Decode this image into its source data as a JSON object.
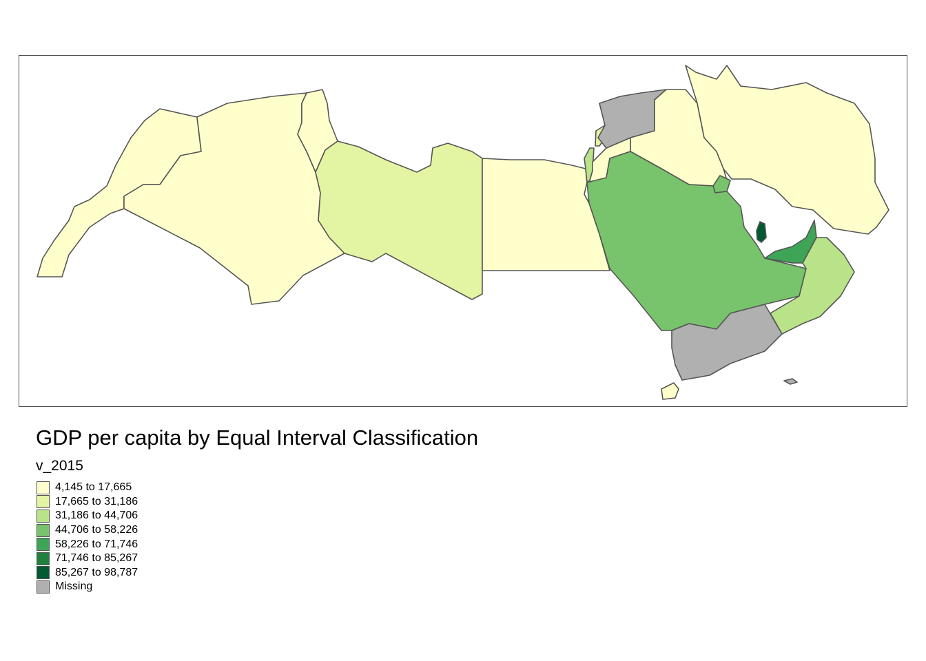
{
  "map": {
    "title": "GDP per capita by Equal Interval Classification",
    "variable": "v_2015",
    "legend": [
      {
        "label": "4,145 to 17,665",
        "color": "#ffffcc"
      },
      {
        "label": "17,665 to 31,186",
        "color": "#e3f4a2"
      },
      {
        "label": "31,186 to 44,706",
        "color": "#b9e389"
      },
      {
        "label": "44,706 to 58,226",
        "color": "#78c46c"
      },
      {
        "label": "58,226 to 71,746",
        "color": "#3ea456"
      },
      {
        "label": "71,746 to 85,267",
        "color": "#208040"
      },
      {
        "label": "85,267 to 98,787",
        "color": "#005a32"
      },
      {
        "label": "Missing",
        "color": "#b0b0b0"
      }
    ],
    "regions": [
      {
        "name": "Morocco",
        "class": 0
      },
      {
        "name": "Algeria",
        "class": 0
      },
      {
        "name": "Tunisia",
        "class": 0
      },
      {
        "name": "Libya",
        "class": 1
      },
      {
        "name": "Egypt",
        "class": 0
      },
      {
        "name": "Israel",
        "class": 2
      },
      {
        "name": "Lebanon",
        "class": 1
      },
      {
        "name": "Jordan",
        "class": 0
      },
      {
        "name": "Syria",
        "class": 7
      },
      {
        "name": "Iraq",
        "class": 0
      },
      {
        "name": "Iran",
        "class": 0
      },
      {
        "name": "Kuwait",
        "class": 3
      },
      {
        "name": "Saudi Arabia",
        "class": 3
      },
      {
        "name": "Qatar",
        "class": 6
      },
      {
        "name": "United Arab Emirates",
        "class": 4
      },
      {
        "name": "Oman",
        "class": 2
      },
      {
        "name": "Yemen",
        "class": 7
      },
      {
        "name": "Somaliland",
        "class": 0
      }
    ]
  }
}
